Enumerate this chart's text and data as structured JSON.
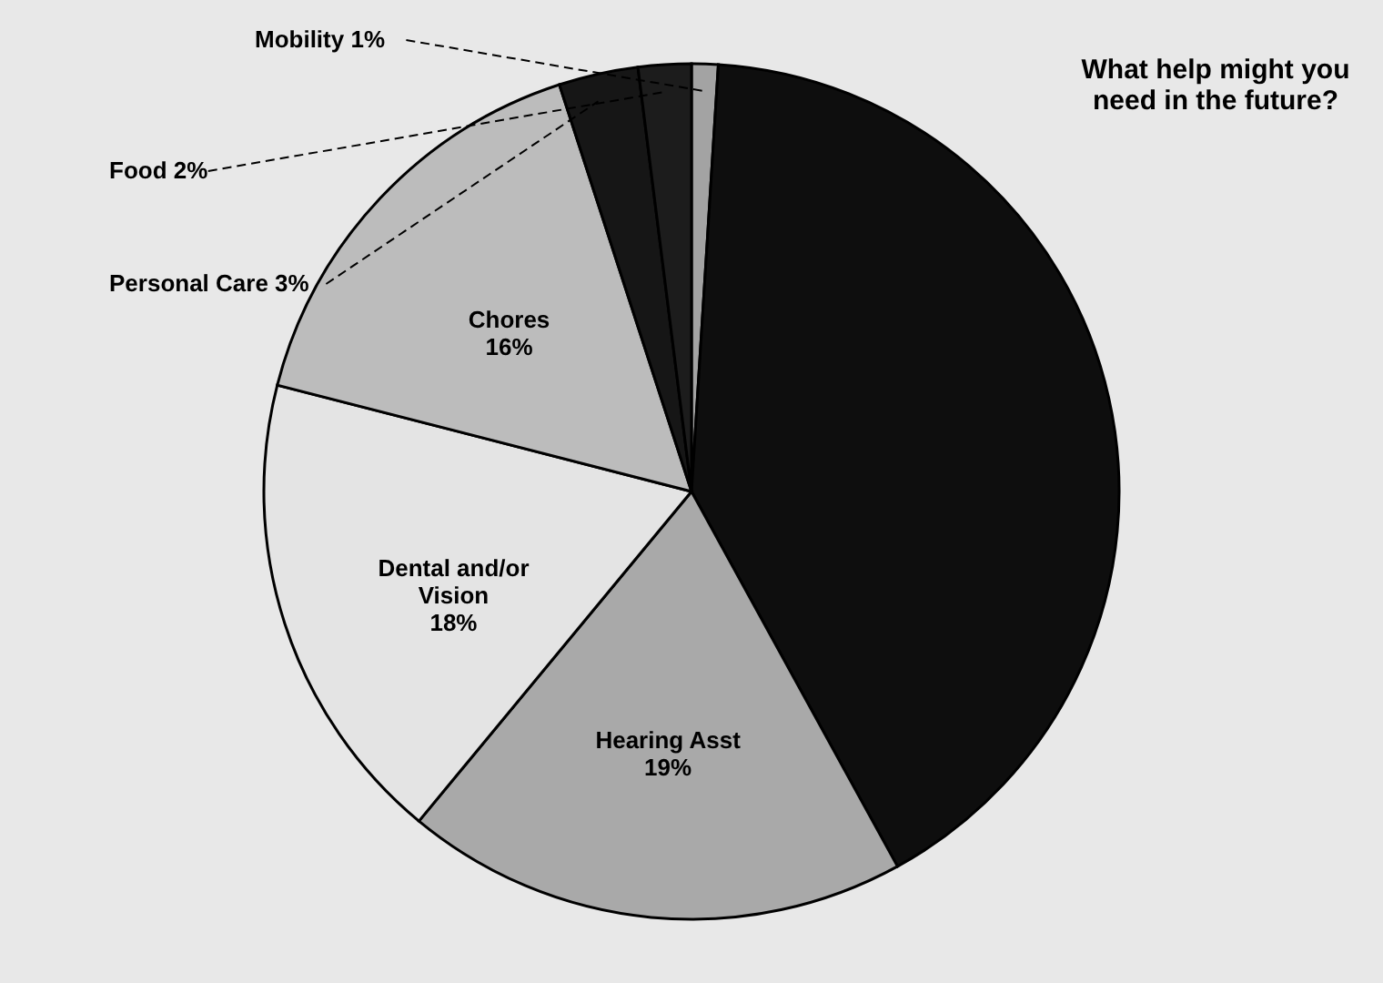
{
  "chart_data": {
    "type": "pie",
    "title": "What help might you need in the future?",
    "categories": [
      "Mobility",
      null,
      "Hearing Asst",
      "Dental and/or Vision",
      "Chores",
      "Personal Care",
      "Food"
    ],
    "values": [
      1,
      41,
      19,
      18,
      16,
      3,
      2
    ],
    "value_labels": [
      "1%",
      null,
      "19%",
      "18%",
      "16%",
      "3%",
      "2%"
    ],
    "colors": [
      "#a3a3a3",
      "#0e0e0e",
      "#a9a9a9",
      "#e4e4e4",
      "#bcbcbc",
      "#161616",
      "#1c1c1c"
    ]
  }
}
